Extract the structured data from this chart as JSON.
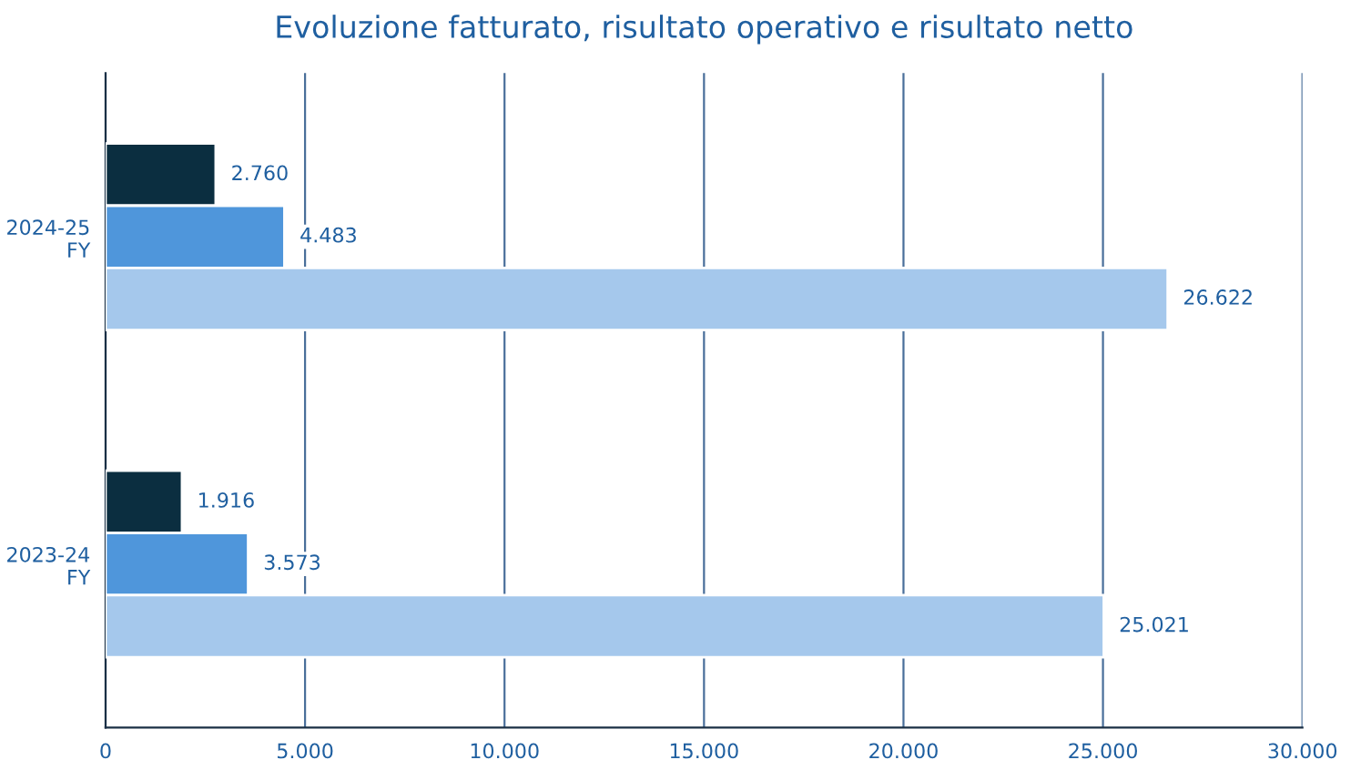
{
  "chart_data": {
    "type": "bar",
    "orientation": "horizontal",
    "title": "Evoluzione fatturato, risultato operativo e risultato netto",
    "categories": [
      "2024-25\nFY",
      "2023-24\nFY"
    ],
    "series": [
      {
        "color": "#0b2e40",
        "values": [
          2760,
          1916
        ],
        "value_labels": [
          "2.760",
          "1.916"
        ]
      },
      {
        "color": "#4f96db",
        "values": [
          4483,
          3573
        ],
        "value_labels": [
          "4.483",
          "3.573"
        ]
      },
      {
        "color": "#a5c8ec",
        "values": [
          26622,
          25021
        ],
        "value_labels": [
          "26.622",
          "25.021"
        ]
      }
    ],
    "xlim": [
      0,
      30000
    ],
    "xticks": [
      0,
      {
        "value": 5000,
        "label": "5.000"
      },
      {
        "value": 10000,
        "label": "10.000"
      },
      {
        "value": 15000,
        "label": "15.000"
      },
      {
        "value": 20000,
        "label": "20.000"
      },
      {
        "value": 25000,
        "label": "25.000"
      },
      {
        "value": 30000,
        "label": "30.000"
      }
    ],
    "grid": "x",
    "legend": false
  }
}
